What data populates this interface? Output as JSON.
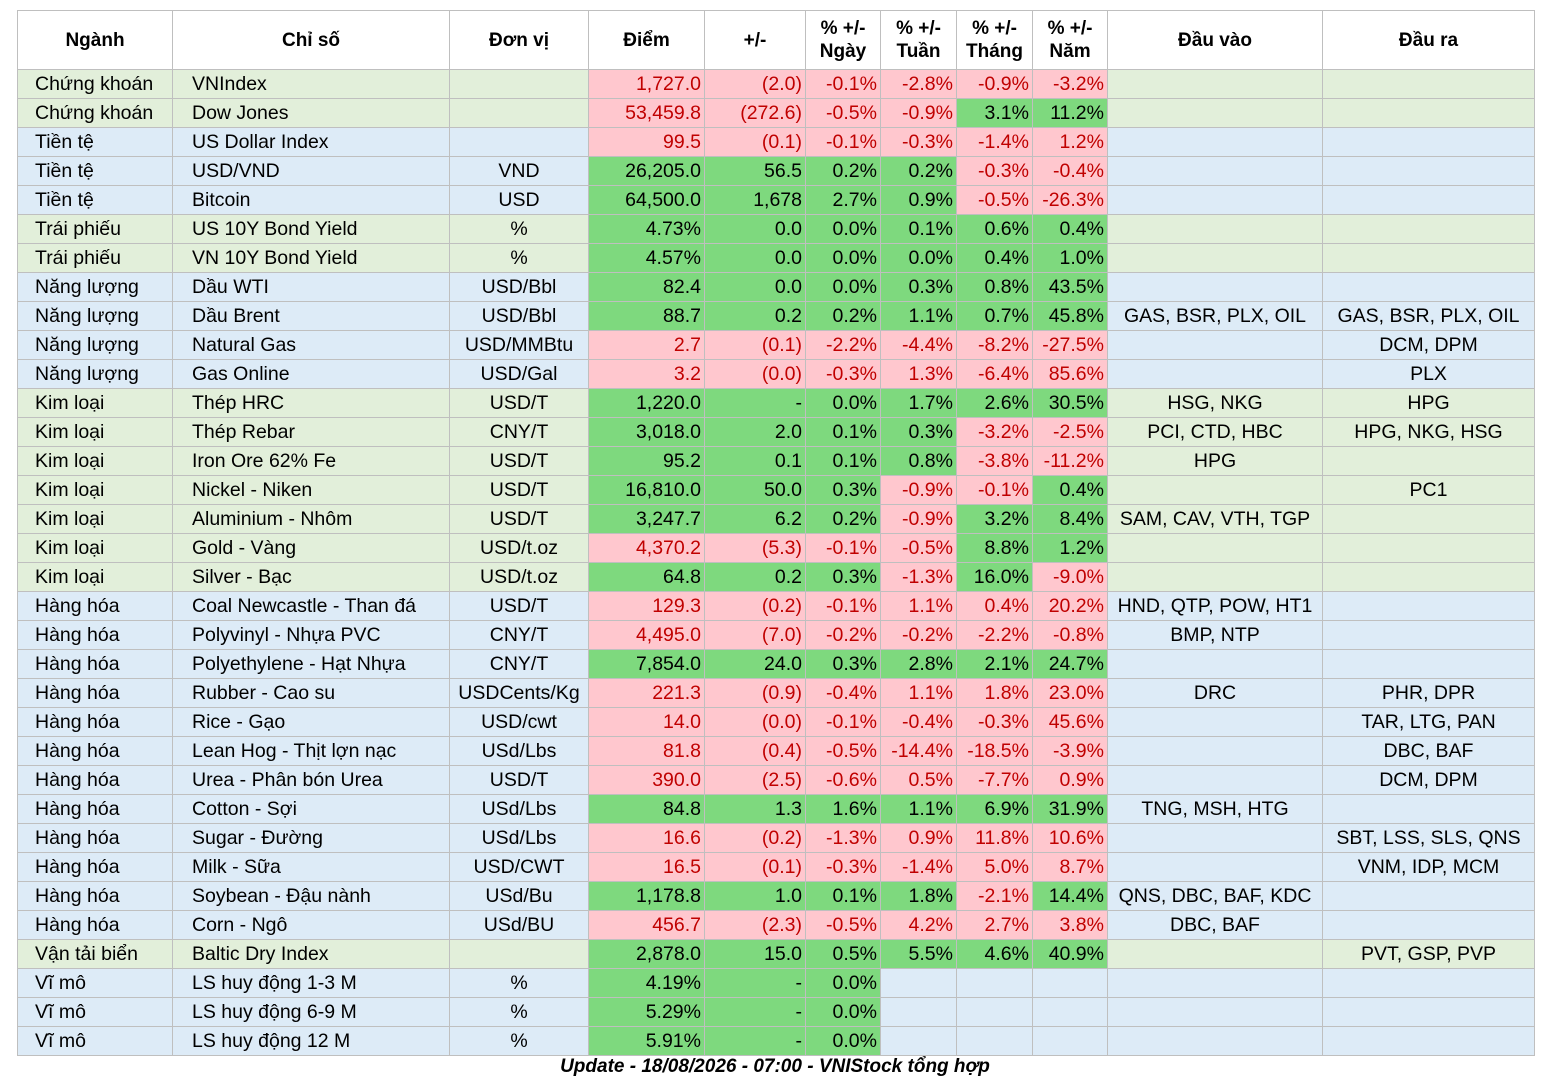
{
  "header": [
    "Ngành",
    "Chỉ số",
    "Đơn vị",
    "Điểm",
    "+/-",
    "% +/-\nNgày",
    "% +/-\nTuần",
    "% +/-\nTháng",
    "% +/-\nNăm",
    "Đầu vào",
    "Đầu ra"
  ],
  "footer": "Update - 18/08/2026 - 07:00 - VNIStock tổng hợp",
  "colors": {
    "green_row": "#e2efda",
    "blue_row": "#ddebf7",
    "positive": "#7ed97e",
    "negative": "#ffc7ce",
    "negative_text": "#c00000"
  },
  "rows": [
    {
      "bg": "g",
      "cells": [
        "Chứng khoán",
        "VNIndex",
        "",
        "1,727.0",
        "(2.0)",
        "-0.1%",
        "-2.8%",
        "-0.9%",
        "-3.2%",
        "",
        ""
      ],
      "sign": [
        "",
        "",
        "",
        "n",
        "n",
        "n",
        "n",
        "n",
        "n",
        "",
        ""
      ]
    },
    {
      "bg": "g",
      "cells": [
        "Chứng khoán",
        "Dow Jones",
        "",
        "53,459.8",
        "(272.6)",
        "-0.5%",
        "-0.9%",
        "3.1%",
        "11.2%",
        "",
        ""
      ],
      "sign": [
        "",
        "",
        "",
        "n",
        "n",
        "n",
        "n",
        "p",
        "p",
        "",
        ""
      ]
    },
    {
      "bg": "b",
      "cells": [
        "Tiền tệ",
        "US Dollar Index",
        "",
        "99.5",
        "(0.1)",
        "-0.1%",
        "-0.3%",
        "-1.4%",
        "1.2%",
        "",
        ""
      ],
      "sign": [
        "",
        "",
        "",
        "n",
        "n",
        "n",
        "n",
        "n",
        "n",
        "",
        ""
      ]
    },
    {
      "bg": "b",
      "cells": [
        "Tiền tệ",
        "USD/VND",
        "VND",
        "26,205.0",
        "56.5",
        "0.2%",
        "0.2%",
        "-0.3%",
        "-0.4%",
        "",
        ""
      ],
      "sign": [
        "",
        "",
        "",
        "p",
        "p",
        "p",
        "p",
        "n",
        "n",
        "",
        ""
      ]
    },
    {
      "bg": "b",
      "cells": [
        "Tiền tệ",
        "Bitcoin",
        "USD",
        "64,500.0",
        "1,678",
        "2.7%",
        "0.9%",
        "-0.5%",
        "-26.3%",
        "",
        ""
      ],
      "sign": [
        "",
        "",
        "",
        "p",
        "p",
        "p",
        "p",
        "n",
        "n",
        "",
        ""
      ]
    },
    {
      "bg": "g",
      "cells": [
        "Trái phiếu",
        "US 10Y Bond Yield",
        "%",
        "4.73%",
        "0.0",
        "0.0%",
        "0.1%",
        "0.6%",
        "0.4%",
        "",
        ""
      ],
      "sign": [
        "",
        "",
        "",
        "p",
        "p",
        "p",
        "p",
        "p",
        "p",
        "",
        ""
      ]
    },
    {
      "bg": "g",
      "cells": [
        "Trái phiếu",
        "VN 10Y Bond Yield",
        "%",
        "4.57%",
        "0.0",
        "0.0%",
        "0.0%",
        "0.4%",
        "1.0%",
        "",
        ""
      ],
      "sign": [
        "",
        "",
        "",
        "p",
        "p",
        "p",
        "p",
        "p",
        "p",
        "",
        ""
      ]
    },
    {
      "bg": "b",
      "cells": [
        "Năng lượng",
        "Dầu WTI",
        "USD/Bbl",
        "82.4",
        "0.0",
        "0.0%",
        "0.3%",
        "0.8%",
        "43.5%",
        "",
        ""
      ],
      "sign": [
        "",
        "",
        "",
        "p",
        "p",
        "p",
        "p",
        "p",
        "p",
        "",
        ""
      ]
    },
    {
      "bg": "b",
      "cells": [
        "Năng lượng",
        "Dầu Brent",
        "USD/Bbl",
        "88.7",
        "0.2",
        "0.2%",
        "1.1%",
        "0.7%",
        "45.8%",
        "GAS, BSR, PLX, OIL",
        "GAS, BSR, PLX, OIL"
      ],
      "sign": [
        "",
        "",
        "",
        "p",
        "p",
        "p",
        "p",
        "p",
        "p",
        "",
        ""
      ]
    },
    {
      "bg": "b",
      "cells": [
        "Năng lượng",
        "Natural Gas",
        "USD/MMBtu",
        "2.7",
        "(0.1)",
        "-2.2%",
        "-4.4%",
        "-8.2%",
        "-27.5%",
        "",
        "DCM, DPM"
      ],
      "sign": [
        "",
        "",
        "",
        "n",
        "n",
        "n",
        "n",
        "n",
        "n",
        "",
        ""
      ]
    },
    {
      "bg": "b",
      "cells": [
        "Năng lượng",
        "Gas Online",
        "USD/Gal",
        "3.2",
        "(0.0)",
        "-0.3%",
        "1.3%",
        "-6.4%",
        "85.6%",
        "",
        "PLX"
      ],
      "sign": [
        "",
        "",
        "",
        "n",
        "n",
        "n",
        "n",
        "n",
        "n",
        "",
        ""
      ]
    },
    {
      "bg": "g",
      "cells": [
        "Kim loại",
        "Thép HRC",
        "USD/T",
        "1,220.0",
        "-",
        "0.0%",
        "1.7%",
        "2.6%",
        "30.5%",
        "HSG, NKG",
        "HPG"
      ],
      "sign": [
        "",
        "",
        "",
        "p",
        "p",
        "p",
        "p",
        "p",
        "p",
        "",
        ""
      ]
    },
    {
      "bg": "g",
      "cells": [
        "Kim loại",
        "Thép Rebar",
        "CNY/T",
        "3,018.0",
        "2.0",
        "0.1%",
        "0.3%",
        "-3.2%",
        "-2.5%",
        "PCI, CTD, HBC",
        "HPG, NKG, HSG"
      ],
      "sign": [
        "",
        "",
        "",
        "p",
        "p",
        "p",
        "p",
        "n",
        "n",
        "",
        ""
      ]
    },
    {
      "bg": "g",
      "cells": [
        "Kim loại",
        "Iron Ore 62% Fe",
        "USD/T",
        "95.2",
        "0.1",
        "0.1%",
        "0.8%",
        "-3.8%",
        "-11.2%",
        "HPG",
        ""
      ],
      "sign": [
        "",
        "",
        "",
        "p",
        "p",
        "p",
        "p",
        "n",
        "n",
        "",
        ""
      ]
    },
    {
      "bg": "g",
      "cells": [
        "Kim loại",
        "Nickel - Niken",
        "USD/T",
        "16,810.0",
        "50.0",
        "0.3%",
        "-0.9%",
        "-0.1%",
        "0.4%",
        "",
        "PC1"
      ],
      "sign": [
        "",
        "",
        "",
        "p",
        "p",
        "p",
        "n",
        "n",
        "p",
        "",
        ""
      ]
    },
    {
      "bg": "g",
      "cells": [
        "Kim loại",
        "Aluminium - Nhôm",
        "USD/T",
        "3,247.7",
        "6.2",
        "0.2%",
        "-0.9%",
        "3.2%",
        "8.4%",
        "SAM, CAV, VTH, TGP",
        ""
      ],
      "sign": [
        "",
        "",
        "",
        "p",
        "p",
        "p",
        "n",
        "p",
        "p",
        "",
        ""
      ]
    },
    {
      "bg": "g",
      "cells": [
        "Kim loại",
        "Gold - Vàng",
        "USD/t.oz",
        "4,370.2",
        "(5.3)",
        "-0.1%",
        "-0.5%",
        "8.8%",
        "1.2%",
        "",
        ""
      ],
      "sign": [
        "",
        "",
        "",
        "n",
        "n",
        "n",
        "n",
        "p",
        "p",
        "",
        ""
      ]
    },
    {
      "bg": "g",
      "cells": [
        "Kim loại",
        "Silver - Bạc",
        "USD/t.oz",
        "64.8",
        "0.2",
        "0.3%",
        "-1.3%",
        "16.0%",
        "-9.0%",
        "",
        ""
      ],
      "sign": [
        "",
        "",
        "",
        "p",
        "p",
        "p",
        "n",
        "p",
        "n",
        "",
        ""
      ]
    },
    {
      "bg": "b",
      "cells": [
        "Hàng hóa",
        "Coal Newcastle - Than đá",
        "USD/T",
        "129.3",
        "(0.2)",
        "-0.1%",
        "1.1%",
        "0.4%",
        "20.2%",
        "HND, QTP, POW, HT1",
        ""
      ],
      "sign": [
        "",
        "",
        "",
        "n",
        "n",
        "n",
        "n",
        "n",
        "n",
        "",
        ""
      ]
    },
    {
      "bg": "b",
      "cells": [
        "Hàng hóa",
        "Polyvinyl - Nhựa PVC",
        "CNY/T",
        "4,495.0",
        "(7.0)",
        "-0.2%",
        "-0.2%",
        "-2.2%",
        "-0.8%",
        "BMP, NTP",
        ""
      ],
      "sign": [
        "",
        "",
        "",
        "n",
        "n",
        "n",
        "n",
        "n",
        "n",
        "",
        ""
      ]
    },
    {
      "bg": "b",
      "cells": [
        "Hàng hóa",
        "Polyethylene - Hạt Nhựa",
        "CNY/T",
        "7,854.0",
        "24.0",
        "0.3%",
        "2.8%",
        "2.1%",
        "24.7%",
        "",
        ""
      ],
      "sign": [
        "",
        "",
        "",
        "p",
        "p",
        "p",
        "p",
        "p",
        "p",
        "",
        ""
      ]
    },
    {
      "bg": "b",
      "cells": [
        "Hàng hóa",
        "Rubber - Cao su",
        "USDCents/Kg",
        "221.3",
        "(0.9)",
        "-0.4%",
        "1.1%",
        "1.8%",
        "23.0%",
        "DRC",
        "PHR, DPR"
      ],
      "sign": [
        "",
        "",
        "",
        "n",
        "n",
        "n",
        "n",
        "n",
        "n",
        "",
        ""
      ]
    },
    {
      "bg": "b",
      "cells": [
        "Hàng hóa",
        "Rice - Gạo",
        "USD/cwt",
        "14.0",
        "(0.0)",
        "-0.1%",
        "-0.4%",
        "-0.3%",
        "45.6%",
        "",
        "TAR, LTG, PAN"
      ],
      "sign": [
        "",
        "",
        "",
        "n",
        "n",
        "n",
        "n",
        "n",
        "n",
        "",
        ""
      ]
    },
    {
      "bg": "b",
      "cells": [
        "Hàng hóa",
        "Lean Hog - Thịt lợn nạc",
        "USd/Lbs",
        "81.8",
        "(0.4)",
        "-0.5%",
        "-14.4%",
        "-18.5%",
        "-3.9%",
        "",
        "DBC, BAF"
      ],
      "sign": [
        "",
        "",
        "",
        "n",
        "n",
        "n",
        "n",
        "n",
        "n",
        "",
        ""
      ]
    },
    {
      "bg": "b",
      "cells": [
        "Hàng hóa",
        "Urea - Phân bón Urea",
        "USD/T",
        "390.0",
        "(2.5)",
        "-0.6%",
        "0.5%",
        "-7.7%",
        "0.9%",
        "",
        "DCM, DPM"
      ],
      "sign": [
        "",
        "",
        "",
        "n",
        "n",
        "n",
        "n",
        "n",
        "n",
        "",
        ""
      ]
    },
    {
      "bg": "b",
      "cells": [
        "Hàng hóa",
        "Cotton - Sợi",
        "USd/Lbs",
        "84.8",
        "1.3",
        "1.6%",
        "1.1%",
        "6.9%",
        "31.9%",
        "TNG, MSH, HTG",
        ""
      ],
      "sign": [
        "",
        "",
        "",
        "p",
        "p",
        "p",
        "p",
        "p",
        "p",
        "",
        ""
      ]
    },
    {
      "bg": "b",
      "cells": [
        "Hàng hóa",
        "Sugar - Đường",
        "USd/Lbs",
        "16.6",
        "(0.2)",
        "-1.3%",
        "0.9%",
        "11.8%",
        "10.6%",
        "",
        "SBT, LSS, SLS, QNS"
      ],
      "sign": [
        "",
        "",
        "",
        "n",
        "n",
        "n",
        "n",
        "n",
        "n",
        "",
        ""
      ]
    },
    {
      "bg": "b",
      "cells": [
        "Hàng hóa",
        "Milk - Sữa",
        "USD/CWT",
        "16.5",
        "(0.1)",
        "-0.3%",
        "-1.4%",
        "5.0%",
        "8.7%",
        "",
        "VNM, IDP, MCM"
      ],
      "sign": [
        "",
        "",
        "",
        "n",
        "n",
        "n",
        "n",
        "n",
        "n",
        "",
        ""
      ]
    },
    {
      "bg": "b",
      "cells": [
        "Hàng hóa",
        "Soybean - Đậu nành",
        "USd/Bu",
        "1,178.8",
        "1.0",
        "0.1%",
        "1.8%",
        "-2.1%",
        "14.4%",
        "QNS, DBC, BAF, KDC",
        ""
      ],
      "sign": [
        "",
        "",
        "",
        "p",
        "p",
        "p",
        "p",
        "n",
        "p",
        "",
        ""
      ]
    },
    {
      "bg": "b",
      "cells": [
        "Hàng hóa",
        "Corn - Ngô",
        "USd/BU",
        "456.7",
        "(2.3)",
        "-0.5%",
        "4.2%",
        "2.7%",
        "3.8%",
        "DBC, BAF",
        ""
      ],
      "sign": [
        "",
        "",
        "",
        "n",
        "n",
        "n",
        "n",
        "n",
        "n",
        "",
        ""
      ]
    },
    {
      "bg": "g",
      "cells": [
        "Vận tải biển",
        "Baltic Dry Index",
        "",
        "2,878.0",
        "15.0",
        "0.5%",
        "5.5%",
        "4.6%",
        "40.9%",
        "",
        "PVT, GSP, PVP"
      ],
      "sign": [
        "",
        "",
        "",
        "p",
        "p",
        "p",
        "p",
        "p",
        "p",
        "",
        ""
      ]
    },
    {
      "bg": "b",
      "cells": [
        "Vĩ mô",
        "LS huy động 1-3 M",
        "%",
        "4.19%",
        "-",
        "0.0%",
        "",
        "",
        "",
        "",
        ""
      ],
      "sign": [
        "",
        "",
        "",
        "p",
        "p",
        "p",
        "",
        "",
        "",
        "",
        ""
      ]
    },
    {
      "bg": "b",
      "cells": [
        "Vĩ mô",
        "LS huy động 6-9 M",
        "%",
        "5.29%",
        "-",
        "0.0%",
        "",
        "",
        "",
        "",
        ""
      ],
      "sign": [
        "",
        "",
        "",
        "p",
        "p",
        "p",
        "",
        "",
        "",
        "",
        ""
      ]
    },
    {
      "bg": "b",
      "cells": [
        "Vĩ mô",
        "LS huy động 12 M",
        "%",
        "5.91%",
        "-",
        "0.0%",
        "",
        "",
        "",
        "",
        ""
      ],
      "sign": [
        "",
        "",
        "",
        "p",
        "p",
        "p",
        "",
        "",
        "",
        "",
        ""
      ]
    }
  ]
}
